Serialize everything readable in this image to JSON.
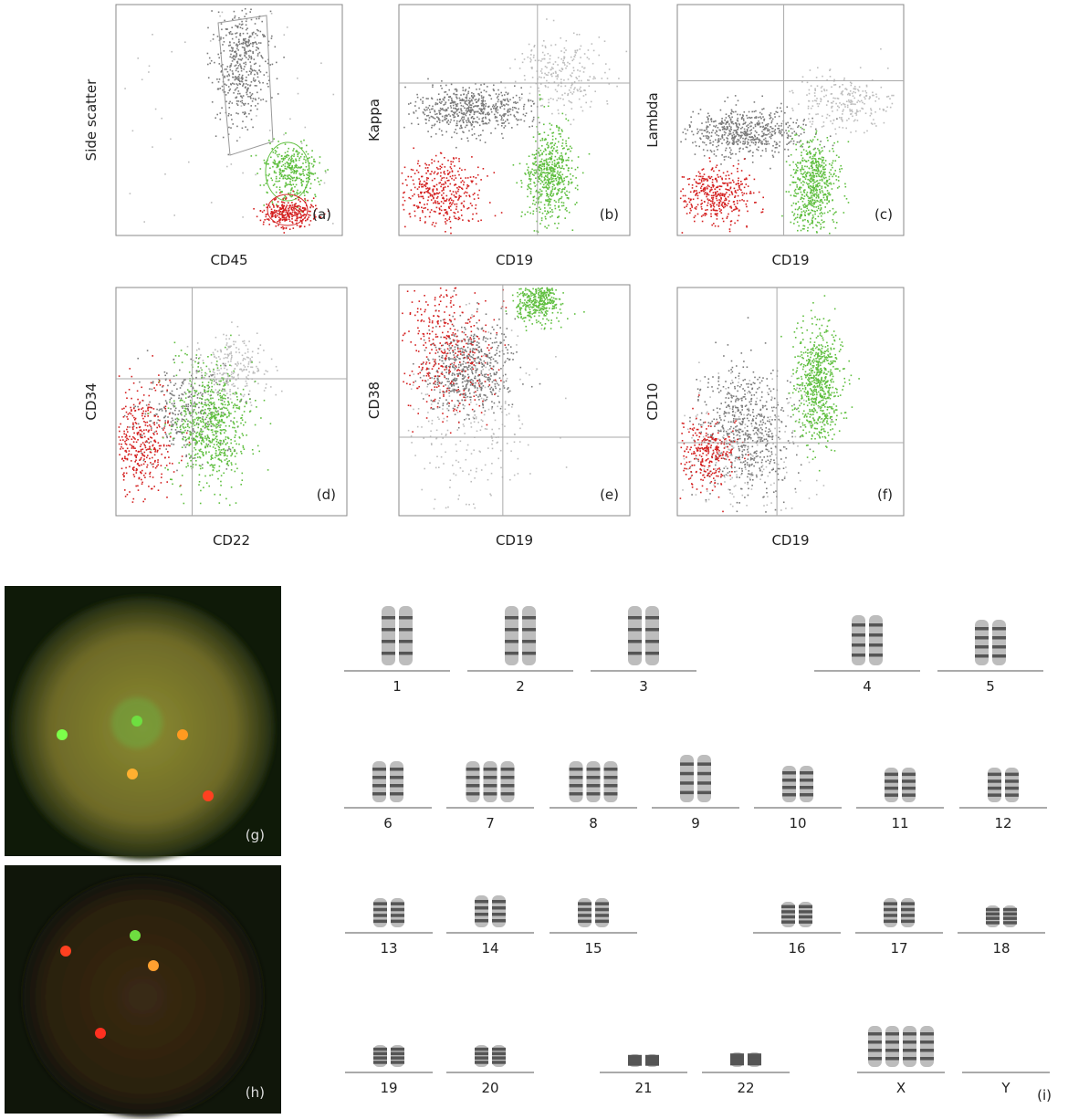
{
  "flow_panels": [
    {
      "label": "(a)",
      "x_label": "CD45",
      "y_label": "Side scatter"
    },
    {
      "label": "(b)",
      "x_label": "CD19",
      "y_label": "Kappa"
    },
    {
      "label": "(c)",
      "x_label": "CD19",
      "y_label": "Lambda"
    },
    {
      "label": "(d)",
      "x_label": "CD22",
      "y_label": "CD34"
    },
    {
      "label": "(e)",
      "x_label": "CD19",
      "y_label": "CD38"
    },
    {
      "label": "(f)",
      "x_label": "CD19",
      "y_label": "CD10"
    }
  ],
  "fish_panels": [
    {
      "label": "(g)"
    },
    {
      "label": "(h)"
    }
  ],
  "karyotype": {
    "label": "(i)",
    "chromosomes": [
      "1",
      "2",
      "3",
      "4",
      "5",
      "6",
      "7",
      "8",
      "9",
      "10",
      "11",
      "12",
      "13",
      "14",
      "15",
      "16",
      "17",
      "18",
      "19",
      "20",
      "21",
      "22",
      "X",
      "Y"
    ]
  }
}
